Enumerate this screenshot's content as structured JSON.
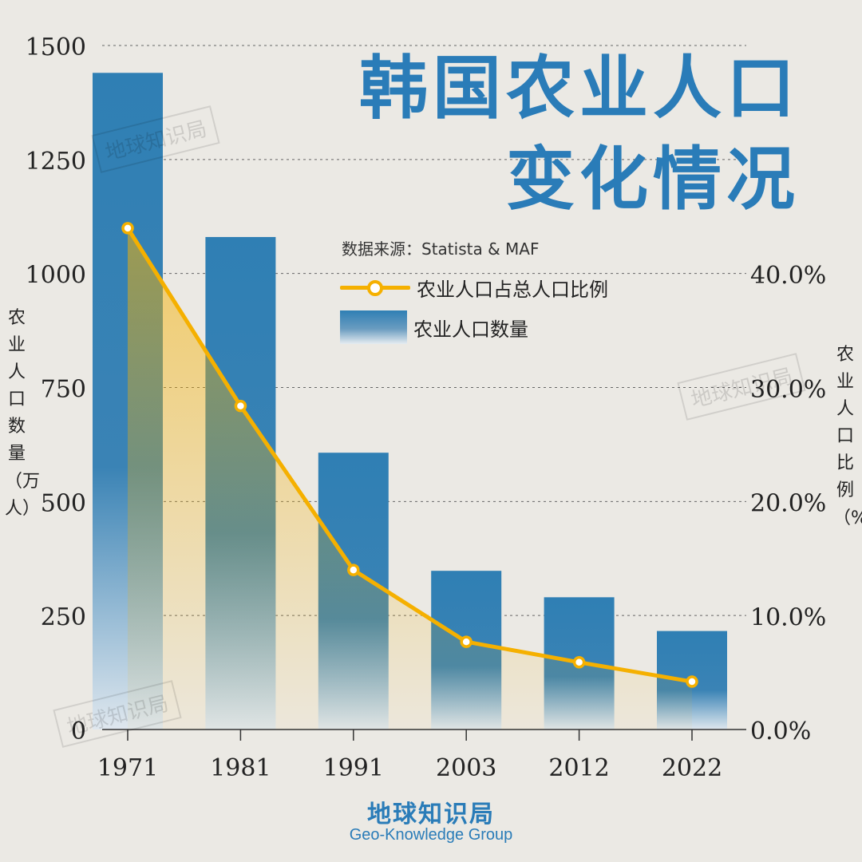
{
  "title_line1": "韩国农业人口",
  "title_line2": "变化情况",
  "source": "数据来源：Statista & MAF",
  "legend": {
    "line_label": "农业人口占总人口比例",
    "bar_label": "农业人口数量"
  },
  "left_axis_label": "农业人口数量（万人）",
  "right_axis_label": "农业人口比例（%）",
  "brand": "地球知识局",
  "brand_en": "Geo-Knowledge Group",
  "watermark": "地球知识局",
  "colors": {
    "bar": "#2f7fb4",
    "line": "#f5b000",
    "title": "#2a7cb8"
  },
  "chart_data": {
    "type": "bar",
    "categories": [
      "1971",
      "1981",
      "1991",
      "2003",
      "2012",
      "2022"
    ],
    "series": [
      {
        "type": "bar",
        "axis": "left",
        "values": [
          1440,
          1080,
          607,
          348,
          290,
          216
        ]
      },
      {
        "type": "line",
        "axis": "right",
        "values": [
          44.0,
          28.4,
          14.0,
          7.7,
          5.9,
          4.2
        ]
      }
    ],
    "y_left": {
      "ylim": [
        0,
        1500
      ],
      "ticks": [
        "0",
        "250",
        "500",
        "750",
        "1000",
        "1250",
        "1500"
      ]
    },
    "y_right": {
      "ylim": [
        0,
        40
      ],
      "ticks": [
        "0.0%",
        "10.0%",
        "20.0%",
        "30.0%",
        "40.0%"
      ]
    },
    "grid": true
  }
}
